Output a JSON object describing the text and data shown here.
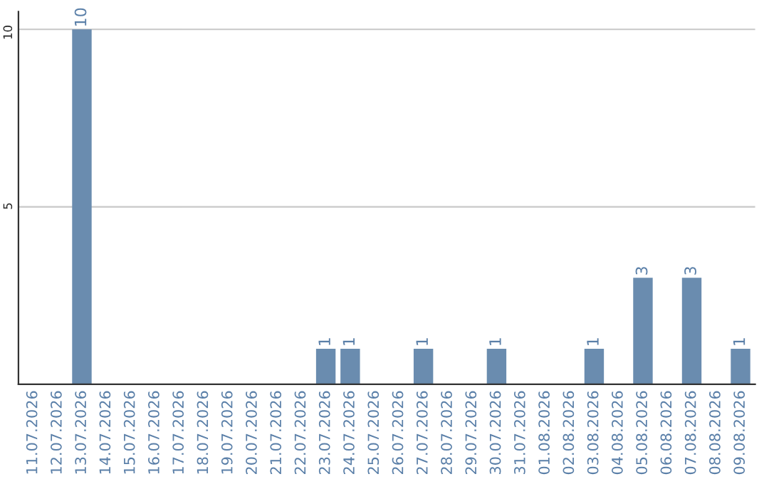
{
  "chart_data": {
    "type": "bar",
    "categories": [
      "11.07.2026",
      "12.07.2026",
      "13.07.2026",
      "14.07.2026",
      "15.07.2026",
      "16.07.2026",
      "17.07.2026",
      "18.07.2026",
      "19.07.2026",
      "20.07.2026",
      "21.07.2026",
      "22.07.2026",
      "23.07.2026",
      "24.07.2026",
      "25.07.2026",
      "26.07.2026",
      "27.07.2026",
      "28.07.2026",
      "29.07.2026",
      "30.07.2026",
      "31.07.2026",
      "01.08.2026",
      "02.08.2026",
      "03.08.2026",
      "04.08.2026",
      "05.08.2026",
      "06.08.2026",
      "07.08.2026",
      "08.08.2026",
      "09.08.2026"
    ],
    "values": [
      0,
      0,
      10,
      0,
      0,
      0,
      0,
      0,
      0,
      0,
      0,
      0,
      1,
      1,
      0,
      0,
      1,
      0,
      0,
      1,
      0,
      0,
      0,
      1,
      0,
      3,
      0,
      3,
      0,
      1
    ],
    "value_labels": [
      null,
      null,
      "10",
      null,
      null,
      null,
      null,
      null,
      null,
      null,
      null,
      null,
      "1",
      "1",
      null,
      null,
      "1",
      null,
      null,
      "1",
      null,
      null,
      null,
      "1",
      null,
      "3",
      null,
      "3",
      null,
      "1"
    ],
    "color": "#6a8caf",
    "ylim": [
      0,
      10.5
    ],
    "yticks": [
      5,
      10
    ],
    "grid": "y"
  }
}
